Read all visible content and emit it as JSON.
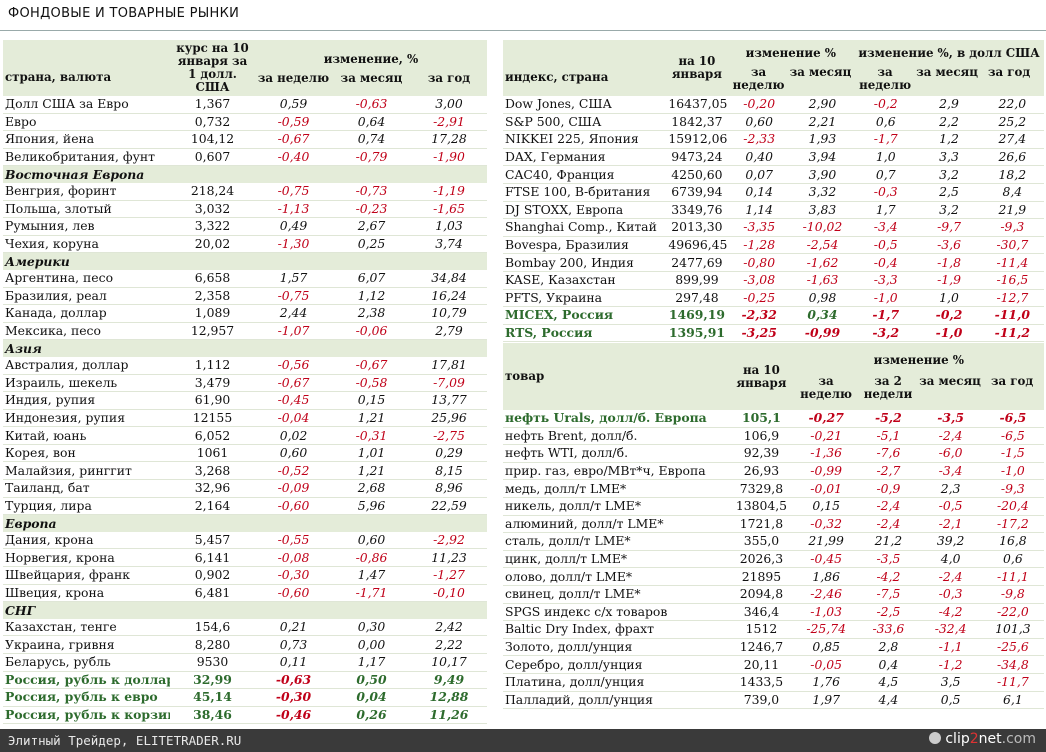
{
  "title": "ФОНДОВЫЕ И ТОВАРНЫЕ РЫНКИ",
  "footer": {
    "left": "Элитный Трейдер, ELITETRADER.RU",
    "logo_a": "clip",
    "logo_b": "2",
    "logo_c": "net",
    "logo_d": ".com"
  },
  "fx": {
    "h_country": "страна, валюта",
    "h_rate": "курс на 10 января за 1 долл. США",
    "h_change": "изменение, %",
    "h_week": "за неделю",
    "h_month": "за месяц",
    "h_year": "за год",
    "rows": [
      {
        "t": "r",
        "n": "Долл США за Евро",
        "v": "1,367",
        "w": "0,59",
        "m": "-0,63",
        "y": "3,00"
      },
      {
        "t": "r",
        "n": "Евро",
        "v": "0,732",
        "w": "-0,59",
        "m": "0,64",
        "y": "-2,91"
      },
      {
        "t": "r",
        "n": "Япония, йена",
        "v": "104,12",
        "w": "-0,67",
        "m": "0,74",
        "y": "17,28"
      },
      {
        "t": "r",
        "n": "Великобритания, фунт",
        "v": "0,607",
        "w": "-0,40",
        "m": "-0,79",
        "y": "-1,90"
      },
      {
        "t": "s",
        "n": "Восточная Европа"
      },
      {
        "t": "r",
        "n": "Венгрия, форинт",
        "v": "218,24",
        "w": "-0,75",
        "m": "-0,73",
        "y": "-1,19"
      },
      {
        "t": "r",
        "n": "Польша, злотый",
        "v": "3,032",
        "w": "-1,13",
        "m": "-0,23",
        "y": "-1,65"
      },
      {
        "t": "r",
        "n": "Румыния, лев",
        "v": "3,322",
        "w": "0,49",
        "m": "2,67",
        "y": "1,03"
      },
      {
        "t": "r",
        "n": "Чехия, коруна",
        "v": "20,02",
        "w": "-1,30",
        "m": "0,25",
        "y": "3,74"
      },
      {
        "t": "s",
        "n": "Америки"
      },
      {
        "t": "r",
        "n": "Аргентина, песо",
        "v": "6,658",
        "w": "1,57",
        "m": "6,07",
        "y": "34,84"
      },
      {
        "t": "r",
        "n": "Бразилия, реал",
        "v": "2,358",
        "w": "-0,75",
        "m": "1,12",
        "y": "16,24"
      },
      {
        "t": "r",
        "n": "Канада, доллар",
        "v": "1,089",
        "w": "2,44",
        "m": "2,38",
        "y": "10,79"
      },
      {
        "t": "r",
        "n": "Мексика, песо",
        "v": "12,957",
        "w": "-1,07",
        "m": "-0,06",
        "y": "2,79"
      },
      {
        "t": "s",
        "n": "Азия"
      },
      {
        "t": "r",
        "n": "Австралия, доллар",
        "v": "1,112",
        "w": "-0,56",
        "m": "-0,67",
        "y": "17,81"
      },
      {
        "t": "r",
        "n": "Израиль, шекель",
        "v": "3,479",
        "w": "-0,67",
        "m": "-0,58",
        "y": "-7,09"
      },
      {
        "t": "r",
        "n": "Индия, рупия",
        "v": "61,90",
        "w": "-0,45",
        "m": "0,15",
        "y": "13,77"
      },
      {
        "t": "r",
        "n": "Индонезия, рупия",
        "v": "12155",
        "w": "-0,04",
        "m": "1,21",
        "y": "25,96"
      },
      {
        "t": "r",
        "n": "Китай, юань",
        "v": "6,052",
        "w": "0,02",
        "m": "-0,31",
        "y": "-2,75"
      },
      {
        "t": "r",
        "n": "Корея, вон",
        "v": "1061",
        "w": "0,60",
        "m": "1,01",
        "y": "0,29"
      },
      {
        "t": "r",
        "n": "Малайзия, ринггит",
        "v": "3,268",
        "w": "-0,52",
        "m": "1,21",
        "y": "8,15"
      },
      {
        "t": "r",
        "n": "Таиланд, бат",
        "v": "32,96",
        "w": "-0,09",
        "m": "2,68",
        "y": "8,96"
      },
      {
        "t": "r",
        "n": "Турция, лира",
        "v": "2,164",
        "w": "-0,60",
        "m": "5,96",
        "y": "22,59"
      },
      {
        "t": "s",
        "n": "Европа"
      },
      {
        "t": "r",
        "n": "Дания, крона",
        "v": "5,457",
        "w": "-0,55",
        "m": "0,60",
        "y": "-2,92"
      },
      {
        "t": "r",
        "n": "Норвегия, крона",
        "v": "6,141",
        "w": "-0,08",
        "m": "-0,86",
        "y": "11,23"
      },
      {
        "t": "r",
        "n": "Швейцария, франк",
        "v": "0,902",
        "w": "-0,30",
        "m": "1,47",
        "y": "-1,27"
      },
      {
        "t": "r",
        "n": "Швеция, крона",
        "v": "6,481",
        "w": "-0,60",
        "m": "-1,71",
        "y": "-0,10"
      },
      {
        "t": "s",
        "n": "СНГ"
      },
      {
        "t": "r",
        "n": "Казахстан, тенге",
        "v": "154,6",
        "w": "0,21",
        "m": "0,30",
        "y": "2,42"
      },
      {
        "t": "r",
        "n": "Украина, гривня",
        "v": "8,280",
        "w": "0,73",
        "m": "0,00",
        "y": "2,22"
      },
      {
        "t": "r",
        "n": "Беларусь, рубль",
        "v": "9530",
        "w": "0,11",
        "m": "1,17",
        "y": "10,17"
      },
      {
        "t": "h",
        "n": "Россия, рубль к доллару",
        "v": "32,99",
        "w": "-0,63",
        "m": "0,50",
        "y": "9,49"
      },
      {
        "t": "h",
        "n": "Россия, рубль к евро",
        "v": "45,14",
        "w": "-0,30",
        "m": "0,04",
        "y": "12,88"
      },
      {
        "t": "h",
        "n": "Россия, рубль к корзине",
        "v": "38,46",
        "w": "-0,46",
        "m": "0,26",
        "y": "11,26"
      }
    ]
  },
  "idx": {
    "h_name": "индекс, страна",
    "h_date": "на 10 января",
    "h_change": "изменение %",
    "h_change_usd": "изменение %, в долл США",
    "h_week": "за неделю",
    "h_month": "за месяц",
    "h_year": "за год",
    "rows": [
      {
        "t": "r",
        "n": "Dow Jones, США",
        "v": "16437,05",
        "a": "-0,20",
        "b": "2,90",
        "c": "-0,2",
        "d": "2,9",
        "e": "22,0"
      },
      {
        "t": "r",
        "n": "S&P 500, США",
        "v": "1842,37",
        "a": "0,60",
        "b": "2,21",
        "c": "0,6",
        "d": "2,2",
        "e": "25,2"
      },
      {
        "t": "r",
        "n": "NIKKEI 225, Япония",
        "v": "15912,06",
        "a": "-2,33",
        "b": "1,93",
        "c": "-1,7",
        "d": "1,2",
        "e": "27,4"
      },
      {
        "t": "r",
        "n": "DAX, Германия",
        "v": "9473,24",
        "a": "0,40",
        "b": "3,94",
        "c": "1,0",
        "d": "3,3",
        "e": "26,6"
      },
      {
        "t": "r",
        "n": "CAC40, Франция",
        "v": "4250,60",
        "a": "0,07",
        "b": "3,90",
        "c": "0,7",
        "d": "3,2",
        "e": "18,2"
      },
      {
        "t": "r",
        "n": "FTSE 100, В-британия",
        "v": "6739,94",
        "a": "0,14",
        "b": "3,32",
        "c": "-0,3",
        "d": "2,5",
        "e": "8,4"
      },
      {
        "t": "r",
        "n": "DJ STOXX, Европа",
        "v": "3349,76",
        "a": "1,14",
        "b": "3,83",
        "c": "1,7",
        "d": "3,2",
        "e": "21,9"
      },
      {
        "t": "r",
        "n": "Shanghai Comp., Китай",
        "v": "2013,30",
        "a": "-3,35",
        "b": "-10,02",
        "c": "-3,4",
        "d": "-9,7",
        "e": "-9,3"
      },
      {
        "t": "r",
        "n": "Bovespa, Бразилия",
        "v": "49696,45",
        "a": "-1,28",
        "b": "-2,54",
        "c": "-0,5",
        "d": "-3,6",
        "e": "-30,7"
      },
      {
        "t": "r",
        "n": "Bombay 200, Индия",
        "v": "2477,69",
        "a": "-0,80",
        "b": "-1,62",
        "c": "-0,4",
        "d": "-1,8",
        "e": "-11,4"
      },
      {
        "t": "r",
        "n": "KASE, Казахстан",
        "v": "899,99",
        "a": "-3,08",
        "b": "-1,63",
        "c": "-3,3",
        "d": "-1,9",
        "e": "-16,5"
      },
      {
        "t": "r",
        "n": "PFTS, Украина",
        "v": "297,48",
        "a": "-0,25",
        "b": "0,98",
        "c": "-1,0",
        "d": "1,0",
        "e": "-12,7"
      },
      {
        "t": "h",
        "n": "MICEX, Россия",
        "v": "1469,19",
        "a": "-2,32",
        "b": "0,34",
        "c": "-1,7",
        "d": "-0,2",
        "e": "-11,0"
      },
      {
        "t": "h",
        "n": "RTS, Россия",
        "v": "1395,91",
        "a": "-3,25",
        "b": "-0,99",
        "c": "-3,2",
        "d": "-1,0",
        "e": "-11,2"
      }
    ]
  },
  "cmd": {
    "h_name": "товар",
    "h_date": "на 10 января",
    "h_change": "изменение %",
    "h_week": "за неделю",
    "h_2weeks": "за 2 недели",
    "h_month": "за месяц",
    "h_year": "за год",
    "rows": [
      {
        "t": "h",
        "n": "нефть Urals, долл/б. Европа",
        "v": "105,1",
        "a": "-0,27",
        "b": "-5,2",
        "c": "-3,5",
        "d": "-6,5"
      },
      {
        "t": "r",
        "n": "нефть Brent, долл/б.",
        "v": "106,9",
        "a": "-0,21",
        "b": "-5,1",
        "c": "-2,4",
        "d": "-6,5"
      },
      {
        "t": "r",
        "n": "нефть WTI, долл/б.",
        "v": "92,39",
        "a": "-1,36",
        "b": "-7,6",
        "c": "-6,0",
        "d": "-1,5"
      },
      {
        "t": "r",
        "n": "прир. газ, евро/МВт*ч, Европа",
        "v": "26,93",
        "a": "-0,99",
        "b": "-2,7",
        "c": "-3,4",
        "d": "-1,0"
      },
      {
        "t": "r",
        "n": "медь, долл/т LME*",
        "v": "7329,8",
        "a": "-0,01",
        "b": "-0,9",
        "c": "2,3",
        "d": "-9,3"
      },
      {
        "t": "r",
        "n": "никель, долл/т LME*",
        "v": "13804,5",
        "a": "0,15",
        "b": "-2,4",
        "c": "-0,5",
        "d": "-20,4"
      },
      {
        "t": "r",
        "n": "алюминий, долл/т LME*",
        "v": "1721,8",
        "a": "-0,32",
        "b": "-2,4",
        "c": "-2,1",
        "d": "-17,2"
      },
      {
        "t": "r",
        "n": "сталь, долл/т LME*",
        "v": "355,0",
        "a": "21,99",
        "b": "21,2",
        "c": "39,2",
        "d": "16,8"
      },
      {
        "t": "r",
        "n": "цинк, долл/т LME*",
        "v": "2026,3",
        "a": "-0,45",
        "b": "-3,5",
        "c": "4,0",
        "d": "0,6"
      },
      {
        "t": "r",
        "n": "олово, долл/т LME*",
        "v": "21895",
        "a": "1,86",
        "b": "-4,2",
        "c": "-2,4",
        "d": "-11,1"
      },
      {
        "t": "r",
        "n": "свинец, долл/т LME*",
        "v": "2094,8",
        "a": "-2,46",
        "b": "-7,5",
        "c": "-0,3",
        "d": "-9,8"
      },
      {
        "t": "r",
        "n": "SPGS индекс с/х товаров",
        "v": "346,4",
        "a": "-1,03",
        "b": "-2,5",
        "c": "-4,2",
        "d": "-22,0"
      },
      {
        "t": "r",
        "n": "Baltic Dry Index, фрахт",
        "v": "1512",
        "a": "-25,74",
        "b": "-33,6",
        "c": "-32,4",
        "d": "101,3"
      },
      {
        "t": "r",
        "n": "Золото, долл/унция",
        "v": "1246,7",
        "a": "0,85",
        "b": "2,8",
        "c": "-1,1",
        "d": "-25,6"
      },
      {
        "t": "r",
        "n": "Серебро, долл/унция",
        "v": "20,11",
        "a": "-0,05",
        "b": "0,4",
        "c": "-1,2",
        "d": "-34,8"
      },
      {
        "t": "r",
        "n": "Платина, долл/унция",
        "v": "1433,5",
        "a": "1,76",
        "b": "4,5",
        "c": "3,5",
        "d": "-11,7"
      },
      {
        "t": "r",
        "n": "Палладий, долл/унция",
        "v": "739,0",
        "a": "1,97",
        "b": "4,4",
        "c": "0,5",
        "d": "6,1"
      }
    ]
  }
}
